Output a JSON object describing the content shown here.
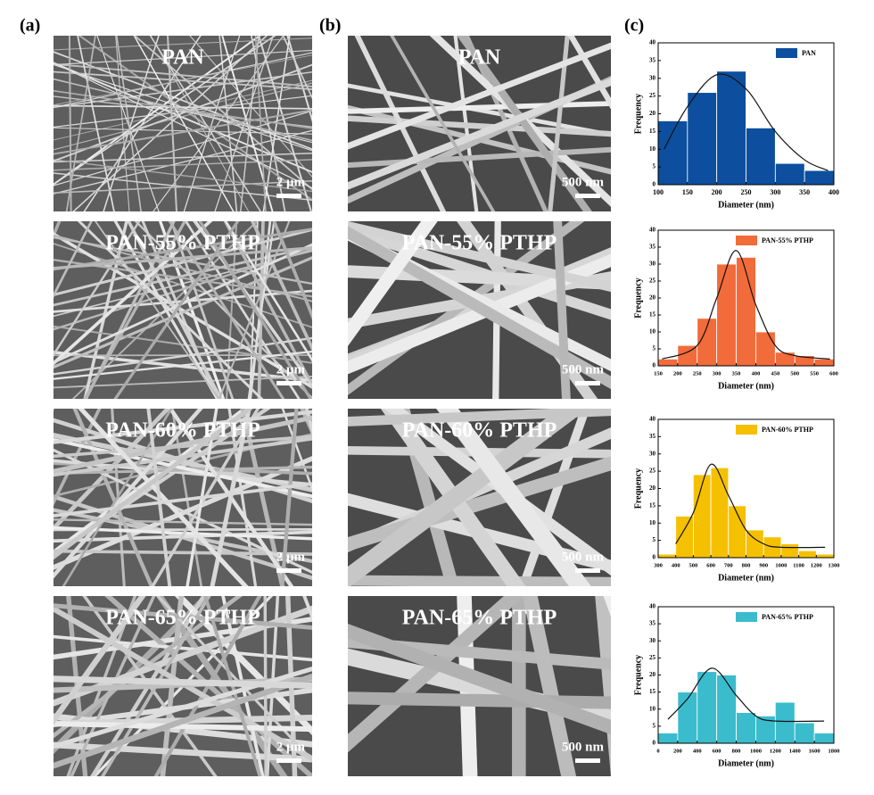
{
  "panel_labels": [
    "(a)",
    "(b)",
    "(c)"
  ],
  "sem_images": {
    "a": [
      {
        "label": "PAN",
        "scale": "2 μm"
      },
      {
        "label": "PAN-55% PTHP",
        "scale": "2 μm"
      },
      {
        "label": "PAN-60% PTHP",
        "scale": "2 μm"
      },
      {
        "label": "PAN-65% PTHP",
        "scale": "2 μm"
      }
    ],
    "b": [
      {
        "label": "PAN",
        "scale": "500 nm"
      },
      {
        "label": "PAN-55% PTHP",
        "scale": "500 nm"
      },
      {
        "label": "PAN-60% PTHP",
        "scale": "500 nm"
      },
      {
        "label": "PAN-65% PTHP",
        "scale": "500 nm"
      }
    ]
  },
  "chart_data": [
    {
      "type": "histogram",
      "xlabel": "Diameter (nm)",
      "ylabel": "Frequency",
      "bins": [
        100,
        150,
        200,
        250,
        300,
        350,
        400
      ],
      "series": [
        {
          "name": "PAN",
          "color": "#0d4f9e",
          "values": [
            18,
            26,
            32,
            16,
            6,
            4
          ]
        }
      ],
      "fit": {
        "x": [
          110,
          150,
          200,
          250,
          300,
          350,
          390
        ],
        "y": [
          10,
          22,
          31,
          27,
          15,
          7,
          4
        ]
      },
      "xlim": [
        100,
        400
      ],
      "xticks": [
        100,
        150,
        200,
        250,
        300,
        350,
        400
      ],
      "ylim": [
        0,
        40
      ],
      "yticks": [
        0,
        5,
        10,
        15,
        20,
        25,
        30,
        35,
        40
      ]
    },
    {
      "type": "histogram",
      "xlabel": "Diameter (nm)",
      "ylabel": "Frequency",
      "bins": [
        150,
        200,
        250,
        300,
        350,
        400,
        450,
        500,
        550,
        600
      ],
      "series": [
        {
          "name": "PAN-55% PTHP",
          "color": "#f26b3a",
          "values": [
            2,
            6,
            14,
            30,
            32,
            10,
            4,
            3,
            2
          ]
        }
      ],
      "fit": {
        "x": [
          160,
          250,
          300,
          350,
          400,
          450,
          500,
          590
        ],
        "y": [
          2,
          6,
          20,
          34,
          18,
          6,
          3,
          2
        ]
      },
      "xlim": [
        150,
        600
      ],
      "xticks": [
        150,
        200,
        250,
        300,
        350,
        400,
        450,
        500,
        550,
        600
      ],
      "ylim": [
        0,
        40
      ],
      "yticks": [
        0,
        5,
        10,
        15,
        20,
        25,
        30,
        35,
        40
      ]
    },
    {
      "type": "histogram",
      "xlabel": "Diameter (nm)",
      "ylabel": "Frequency",
      "bins": [
        300,
        400,
        500,
        600,
        700,
        800,
        900,
        1000,
        1100,
        1200,
        1300
      ],
      "series": [
        {
          "name": "PAN-60% PTHP",
          "color": "#f5c000",
          "values": [
            1,
            12,
            24,
            26,
            15,
            8,
            6,
            4,
            2,
            1
          ]
        }
      ],
      "fit": {
        "x": [
          400,
          500,
          600,
          700,
          800,
          900,
          1000,
          1250
        ],
        "y": [
          4,
          13,
          27,
          18,
          8,
          4,
          3,
          3
        ]
      },
      "xlim": [
        300,
        1300
      ],
      "xticks": [
        300,
        400,
        500,
        600,
        700,
        800,
        900,
        1000,
        1100,
        1200,
        1300
      ],
      "ylim": [
        0,
        40
      ],
      "yticks": [
        0,
        5,
        10,
        15,
        20,
        25,
        30,
        35,
        40
      ]
    },
    {
      "type": "histogram",
      "xlabel": "Diameter (nm)",
      "ylabel": "Frequency",
      "bins": [
        0,
        200,
        400,
        600,
        800,
        1000,
        1200,
        1400,
        1600,
        1800
      ],
      "series": [
        {
          "name": "PAN-65% PTHP",
          "color": "#3bbccc",
          "values": [
            3,
            15,
            21,
            20,
            9,
            8,
            12,
            6,
            3
          ]
        }
      ],
      "fit": {
        "x": [
          100,
          300,
          550,
          800,
          1000,
          1200,
          1700
        ],
        "y": [
          7,
          13,
          22,
          14,
          8,
          6.5,
          6.5
        ]
      },
      "xlim": [
        0,
        1800
      ],
      "xticks": [
        0,
        200,
        400,
        600,
        800,
        1000,
        1200,
        1400,
        1600,
        1800
      ],
      "ylim": [
        0,
        40
      ],
      "yticks": [
        0,
        5,
        10,
        15,
        20,
        25,
        30,
        35,
        40
      ]
    }
  ]
}
